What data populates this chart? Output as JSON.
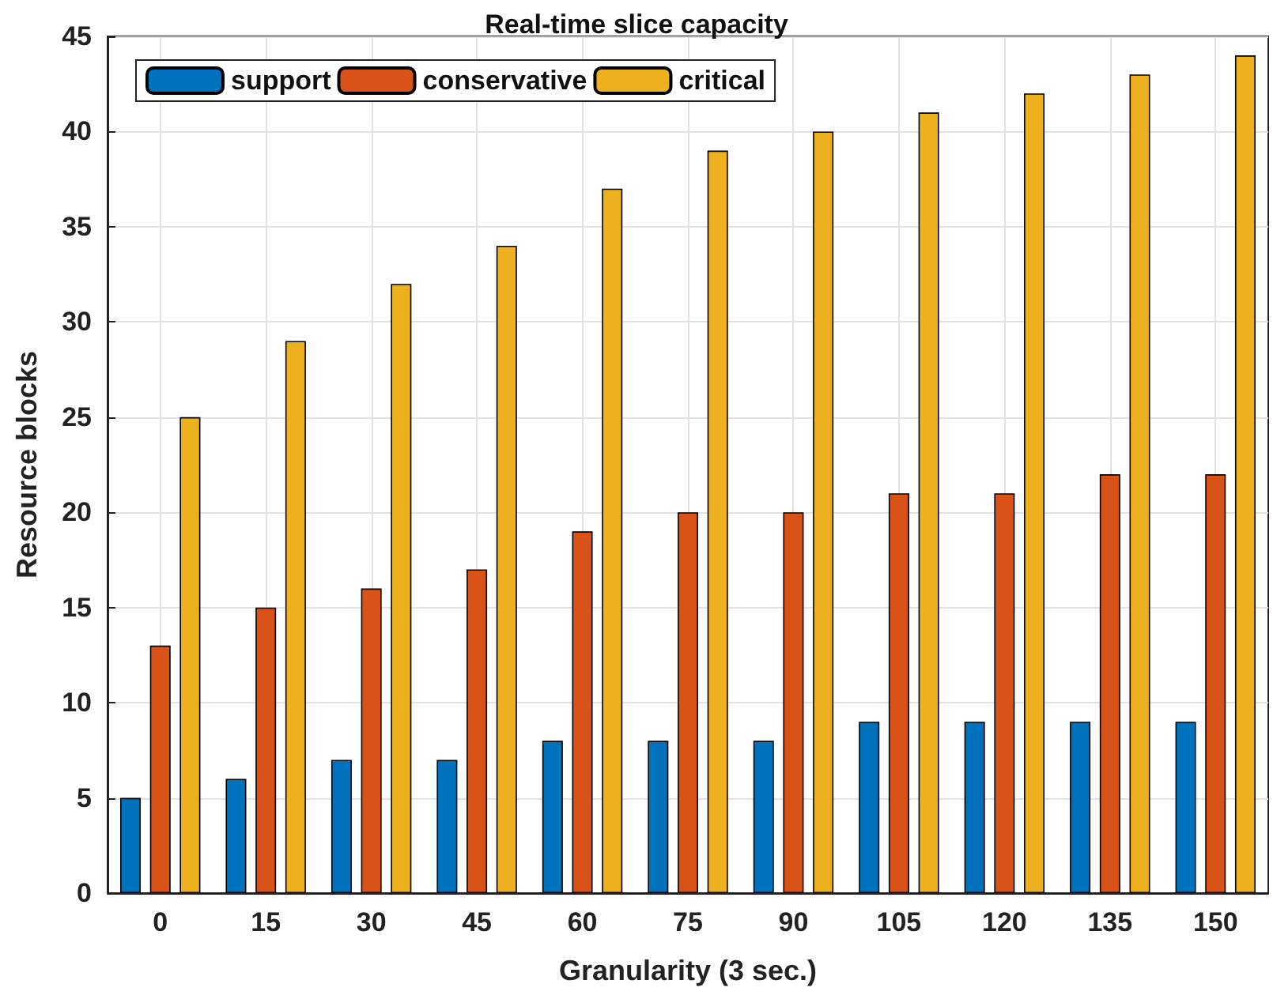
{
  "chart_data": {
    "type": "bar",
    "title": "Real-time slice capacity",
    "xlabel": "Granularity (3 sec.)",
    "ylabel": "Resource blocks",
    "categories": [
      "0",
      "15",
      "30",
      "45",
      "60",
      "75",
      "90",
      "105",
      "120",
      "135",
      "150"
    ],
    "series": [
      {
        "name": "support",
        "color": "#0072bd",
        "values": [
          5,
          6,
          7,
          7,
          8,
          8,
          8,
          9,
          9,
          9,
          9
        ]
      },
      {
        "name": "conservative",
        "color": "#d95319",
        "values": [
          13,
          15,
          16,
          17,
          19,
          20,
          20,
          21,
          21,
          22,
          22
        ]
      },
      {
        "name": "critical",
        "color": "#edb120",
        "values": [
          25,
          29,
          32,
          34,
          37,
          39,
          40,
          41,
          42,
          43,
          44
        ]
      }
    ],
    "ylim": [
      0,
      45
    ],
    "yticks": [
      0,
      5,
      10,
      15,
      20,
      25,
      30,
      35,
      40,
      45
    ],
    "grid": true,
    "legend": "top left"
  }
}
